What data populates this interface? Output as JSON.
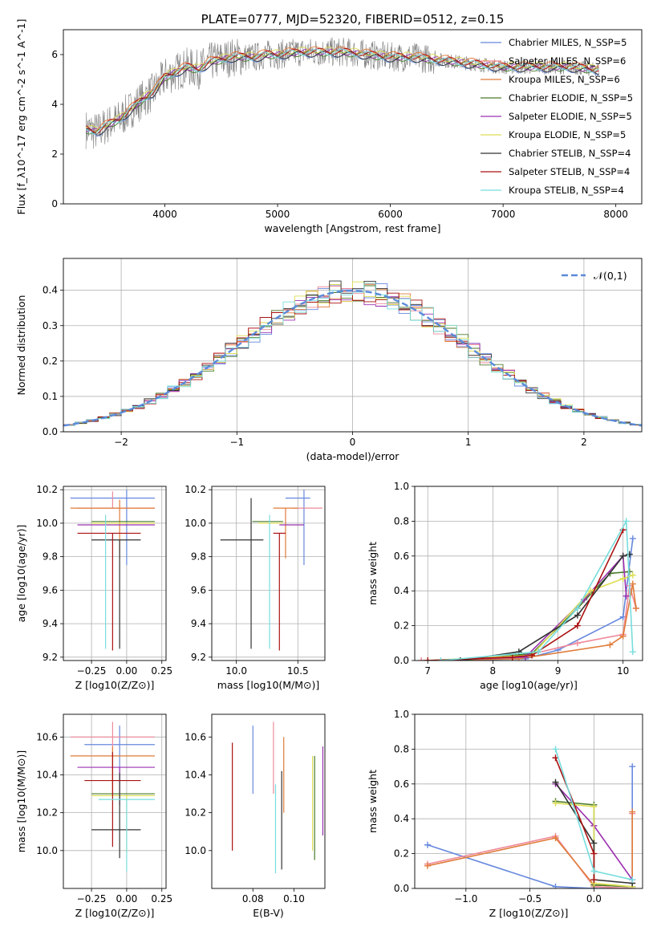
{
  "chart_data": [
    {
      "id": "spectrum",
      "type": "line",
      "title": "PLATE=0777, MJD=52320, FIBERID=0512, z=0.15",
      "xlabel": "wavelength [Angstrom, rest frame]",
      "ylabel": "Flux [f_λ10^-17 erg cm^-2 s^-1 A^-1]",
      "xlim": [
        3100,
        8230
      ],
      "ylim": [
        0,
        7.0
      ],
      "xticks": [
        4000,
        5000,
        6000,
        7000,
        8000
      ],
      "yticks": [
        0,
        2,
        4,
        6
      ],
      "grid": false,
      "legend_position": "top-right",
      "data_series": {
        "name": "",
        "color": "#808080",
        "x": [
          3300,
          3400,
          3500,
          3600,
          3700,
          3800,
          3900,
          4000,
          4100,
          4200,
          4300,
          4400,
          4500,
          4600,
          4700,
          4800,
          4900,
          5000,
          5200,
          5400,
          5600,
          5800,
          6000,
          6200,
          6400,
          6600,
          6800,
          7000,
          7200,
          7400,
          7600,
          7800
        ],
        "y": [
          3.0,
          2.9,
          3.2,
          3.4,
          3.8,
          4.2,
          4.5,
          5.1,
          5.3,
          5.5,
          5.4,
          5.7,
          5.8,
          5.9,
          5.9,
          5.9,
          6.0,
          6.0,
          6.1,
          6.1,
          6.1,
          6.0,
          5.9,
          5.9,
          5.8,
          5.7,
          5.6,
          5.5,
          5.5,
          5.5,
          5.5,
          5.4
        ]
      },
      "legend": [
        {
          "label": "Chabrier MILES, N_SSP=5",
          "color": "#6688dd"
        },
        {
          "label": "Salpeter MILES, N_SSP=6",
          "color": "#ee8899"
        },
        {
          "label": "Kroupa MILES, N_SSP=6",
          "color": "#e07b39"
        },
        {
          "label": "Chabrier ELODIE, N_SSP=5",
          "color": "#4a7a2a"
        },
        {
          "label": "Salpeter ELODIE, N_SSP=5",
          "color": "#9b30b0"
        },
        {
          "label": "Kroupa ELODIE, N_SSP=5",
          "color": "#dddd55"
        },
        {
          "label": "Chabrier STELIB, N_SSP=4",
          "color": "#333333"
        },
        {
          "label": "Salpeter STELIB, N_SSP=4",
          "color": "#aa1111"
        },
        {
          "label": "Kroupa STELIB, N_SSP=4",
          "color": "#77dddd"
        }
      ],
      "model_offsets": [
        -0.1,
        0.05,
        0.1,
        -0.05,
        0.0,
        0.08,
        -0.08,
        0.03,
        0.0
      ]
    },
    {
      "id": "residuals",
      "type": "line",
      "xlabel": "(data-model)/error",
      "ylabel": "Normed distribution",
      "xlim": [
        -2.5,
        2.5
      ],
      "ylim": [
        0,
        0.49
      ],
      "xticks": [
        -2,
        -1,
        0,
        1,
        2
      ],
      "yticks": [
        0.0,
        0.1,
        0.2,
        0.3,
        0.4
      ],
      "grid": true,
      "legend_position": "top-right",
      "legend_label": "𝒩(0,1)",
      "gaussian_color": "#5b8bd9"
    },
    {
      "id": "age-vs-Z",
      "type": "scatter",
      "xlabel": "Z [log10(Z/Z⊙)]",
      "ylabel": "age [log10(age/yr)]",
      "xlim": [
        -0.45,
        0.28
      ],
      "ylim": [
        9.18,
        10.22
      ],
      "xticks": [
        -0.25,
        0.0,
        0.25
      ],
      "yticks": [
        9.2,
        9.4,
        9.6,
        9.8,
        10.0,
        10.2
      ],
      "grid": true,
      "points": [
        {
          "x": 0.0,
          "y": 10.15,
          "xerr": [
            0.4,
            0.2
          ],
          "yerr": [
            0.4,
            0.05
          ],
          "color": "#6688dd"
        },
        {
          "x": -0.1,
          "y": 10.09,
          "xerr": [
            0.25,
            0.3
          ],
          "yerr": [
            0.0,
            0.1
          ],
          "color": "#ee8899"
        },
        {
          "x": -0.05,
          "y": 10.09,
          "xerr": [
            0.35,
            0.25
          ],
          "yerr": [
            0.3,
            0.05
          ],
          "color": "#e07b39"
        },
        {
          "x": 0.0,
          "y": 10.01,
          "xerr": [
            0.25,
            0.2
          ],
          "yerr": [
            0.0,
            0.0
          ],
          "color": "#4a7a2a"
        },
        {
          "x": -0.1,
          "y": 9.99,
          "xerr": [
            0.25,
            0.3
          ],
          "yerr": [
            0.0,
            0.0
          ],
          "color": "#9b30b0"
        },
        {
          "x": -0.05,
          "y": 10.0,
          "xerr": [
            0.2,
            0.25
          ],
          "yerr": [
            0.0,
            0.0
          ],
          "color": "#dddd55"
        },
        {
          "x": -0.05,
          "y": 9.9,
          "xerr": [
            0.2,
            0.15
          ],
          "yerr": [
            0.65,
            0.0
          ],
          "color": "#333333"
        },
        {
          "x": -0.1,
          "y": 9.94,
          "xerr": [
            0.25,
            0.2
          ],
          "yerr": [
            0.7,
            0.0
          ],
          "color": "#aa1111"
        },
        {
          "x": -0.15,
          "y": 10.0,
          "xerr": [
            0.0,
            0.0
          ],
          "yerr": [
            0.75,
            0.05
          ],
          "color": "#77dddd"
        }
      ]
    },
    {
      "id": "age-vs-mass",
      "type": "scatter",
      "xlabel": "mass [log10(M/M⊙)]",
      "ylabel": "",
      "xlim": [
        9.8,
        10.72
      ],
      "ylim": [
        9.18,
        10.22
      ],
      "xticks": [
        10.0,
        10.5
      ],
      "yticks": [
        9.2,
        9.4,
        9.6,
        9.8,
        10.0,
        10.2
      ],
      "grid": true,
      "points": [
        {
          "x": 10.55,
          "y": 10.15,
          "xerr": [
            0.15,
            0.05
          ],
          "yerr": [
            0.4,
            0.05
          ],
          "color": "#6688dd"
        },
        {
          "x": 10.55,
          "y": 10.09,
          "xerr": [
            0.1,
            0.15
          ],
          "yerr": [
            0.0,
            0.0
          ],
          "color": "#ee8899"
        },
        {
          "x": 10.4,
          "y": 10.09,
          "xerr": [
            0.1,
            0.1
          ],
          "yerr": [
            0.3,
            0.0
          ],
          "color": "#e07b39"
        },
        {
          "x": 10.28,
          "y": 10.01,
          "xerr": [
            0.15,
            0.1
          ],
          "yerr": [
            0.0,
            0.0
          ],
          "color": "#4a7a2a"
        },
        {
          "x": 10.45,
          "y": 9.99,
          "xerr": [
            0.1,
            0.1
          ],
          "yerr": [
            0.0,
            0.0
          ],
          "color": "#9b30b0"
        },
        {
          "x": 10.28,
          "y": 10.0,
          "xerr": [
            0.1,
            0.1
          ],
          "yerr": [
            0.0,
            0.0
          ],
          "color": "#dddd55"
        },
        {
          "x": 10.12,
          "y": 9.9,
          "xerr": [
            0.25,
            0.1
          ],
          "yerr": [
            0.65,
            0.25
          ],
          "color": "#333333"
        },
        {
          "x": 10.35,
          "y": 9.94,
          "xerr": [
            0.05,
            0.05
          ],
          "yerr": [
            0.7,
            0.0
          ],
          "color": "#aa1111"
        },
        {
          "x": 10.27,
          "y": 10.0,
          "xerr": [
            0.0,
            0.0
          ],
          "yerr": [
            0.75,
            0.05
          ],
          "color": "#77dddd"
        }
      ]
    },
    {
      "id": "massweight-vs-age",
      "type": "line",
      "xlabel": "age [log10(age/yr)]",
      "ylabel": "mass weight",
      "xlim": [
        6.8,
        10.3
      ],
      "ylim": [
        0.0,
        1.0
      ],
      "xticks": [
        7,
        8,
        9,
        10
      ],
      "yticks": [
        0.0,
        0.2,
        0.4,
        0.6,
        0.8,
        1.0
      ],
      "grid": true,
      "series": [
        {
          "color": "#6688dd",
          "x": [
            7.0,
            8.5,
            9.0,
            10.0,
            10.15
          ],
          "y": [
            0.0,
            0.01,
            0.06,
            0.25,
            0.7
          ]
        },
        {
          "color": "#ee8899",
          "x": [
            6.9,
            8.3,
            9.3,
            10.0,
            10.1,
            10.2
          ],
          "y": [
            0.0,
            0.01,
            0.1,
            0.15,
            0.43,
            0.3
          ]
        },
        {
          "color": "#e07b39",
          "x": [
            7.0,
            8.4,
            9.8,
            10.0,
            10.15,
            10.2
          ],
          "y": [
            0.0,
            0.01,
            0.09,
            0.14,
            0.44,
            0.3
          ]
        },
        {
          "color": "#4a7a2a",
          "x": [
            7.5,
            8.6,
            9.3,
            9.8,
            10.1
          ],
          "y": [
            0.0,
            0.04,
            0.3,
            0.5,
            0.51
          ]
        },
        {
          "color": "#9b30b0",
          "x": [
            7.0,
            8.5,
            9.4,
            10.0,
            10.05
          ],
          "y": [
            0.0,
            0.02,
            0.35,
            0.6,
            0.37
          ]
        },
        {
          "color": "#dddd55",
          "x": [
            7.0,
            8.6,
            9.5,
            10.0,
            10.15
          ],
          "y": [
            0.0,
            0.03,
            0.4,
            0.47,
            0.49
          ]
        },
        {
          "color": "#333333",
          "x": [
            7.5,
            8.4,
            9.3,
            10.0,
            10.1
          ],
          "y": [
            0.0,
            0.05,
            0.26,
            0.6,
            0.61
          ]
        },
        {
          "color": "#aa1111",
          "x": [
            7.0,
            8.3,
            8.6,
            9.3,
            10.0
          ],
          "y": [
            0.0,
            0.02,
            0.03,
            0.2,
            0.75
          ]
        },
        {
          "color": "#77dddd",
          "x": [
            7.2,
            8.7,
            9.3,
            10.05,
            10.15
          ],
          "y": [
            0.0,
            0.05,
            0.3,
            0.8,
            0.05
          ]
        }
      ]
    },
    {
      "id": "mass-vs-Z",
      "type": "scatter",
      "xlabel": "Z [log10(Z/Z⊙)]",
      "ylabel": "mass [log10(M/M⊙)]",
      "xlim": [
        -0.45,
        0.28
      ],
      "ylim": [
        9.8,
        10.72
      ],
      "xticks": [
        -0.25,
        0.0,
        0.25
      ],
      "yticks": [
        10.0,
        10.2,
        10.4,
        10.6
      ],
      "grid": true,
      "points": [
        {
          "x": -0.05,
          "y": 10.56,
          "xerr": [
            0.25,
            0.25
          ],
          "yerr": [
            0.2,
            0.1
          ],
          "color": "#6688dd"
        },
        {
          "x": -0.1,
          "y": 10.6,
          "xerr": [
            0.3,
            0.3
          ],
          "yerr": [
            0.25,
            0.08
          ],
          "color": "#ee8899"
        },
        {
          "x": -0.1,
          "y": 10.5,
          "xerr": [
            0.3,
            0.3
          ],
          "yerr": [
            0.2,
            0.05
          ],
          "color": "#e07b39"
        },
        {
          "x": -0.05,
          "y": 10.3,
          "xerr": [
            0.2,
            0.25
          ],
          "yerr": [
            0.0,
            0.0
          ],
          "color": "#4a7a2a"
        },
        {
          "x": -0.05,
          "y": 10.44,
          "xerr": [
            0.3,
            0.25
          ],
          "yerr": [
            0.2,
            0.0
          ],
          "color": "#9b30b0"
        },
        {
          "x": 0.0,
          "y": 10.29,
          "xerr": [
            0.25,
            0.2
          ],
          "yerr": [
            0.3,
            0.0
          ],
          "color": "#dddd55"
        },
        {
          "x": -0.05,
          "y": 10.11,
          "xerr": [
            0.2,
            0.15
          ],
          "yerr": [
            0.15,
            0.3
          ],
          "color": "#333333"
        },
        {
          "x": -0.1,
          "y": 10.37,
          "xerr": [
            0.2,
            0.2
          ],
          "yerr": [
            0.35,
            0.15
          ],
          "color": "#aa1111"
        },
        {
          "x": 0.0,
          "y": 10.27,
          "xerr": [
            0.2,
            0.2
          ],
          "yerr": [
            0.38,
            0.0
          ],
          "color": "#77dddd"
        }
      ]
    },
    {
      "id": "mass-vs-EBV",
      "type": "scatter",
      "xlabel": "E(B-V)",
      "ylabel": "",
      "xlim": [
        0.06,
        0.115
      ],
      "ylim": [
        9.8,
        10.72
      ],
      "xticks": [
        0.08,
        0.1
      ],
      "yticks": [
        10.0,
        10.2,
        10.4,
        10.6
      ],
      "grid": false,
      "points": [
        {
          "x": 0.08,
          "y": 10.5,
          "xerr": [
            0,
            0
          ],
          "yerr": [
            0.2,
            0.16
          ],
          "color": "#6688dd"
        },
        {
          "x": 0.09,
          "y": 10.5,
          "xerr": [
            0,
            0
          ],
          "yerr": [
            0.2,
            0.18
          ],
          "color": "#ee8899"
        },
        {
          "x": 0.095,
          "y": 10.3,
          "xerr": [
            0,
            0
          ],
          "yerr": [
            0.1,
            0.3
          ],
          "color": "#e07b39"
        },
        {
          "x": 0.11,
          "y": 10.2,
          "xerr": [
            0,
            0
          ],
          "yerr": [
            0.25,
            0.3
          ],
          "color": "#4a7a2a"
        },
        {
          "x": 0.114,
          "y": 10.3,
          "xerr": [
            0,
            0
          ],
          "yerr": [
            0.22,
            0.25
          ],
          "color": "#9b30b0"
        },
        {
          "x": 0.109,
          "y": 10.3,
          "xerr": [
            0,
            0
          ],
          "yerr": [
            0.3,
            0.2
          ],
          "color": "#dddd55"
        },
        {
          "x": 0.094,
          "y": 10.2,
          "xerr": [
            0,
            0
          ],
          "yerr": [
            0.3,
            0.22
          ],
          "color": "#333333"
        },
        {
          "x": 0.07,
          "y": 10.3,
          "xerr": [
            0,
            0
          ],
          "yerr": [
            0.3,
            0.27
          ],
          "color": "#aa1111"
        },
        {
          "x": 0.091,
          "y": 10.2,
          "xerr": [
            0,
            0
          ],
          "yerr": [
            0.32,
            0.15
          ],
          "color": "#77dddd"
        }
      ]
    },
    {
      "id": "massweight-vs-Z",
      "type": "line",
      "xlabel": "Z [log10(Z/Z⊙)]",
      "ylabel": "mass weight",
      "xlim": [
        -1.4,
        0.38
      ],
      "ylim": [
        0.0,
        1.0
      ],
      "xticks": [
        -1.0,
        -0.5,
        0.0
      ],
      "yticks": [
        0.0,
        0.2,
        0.4,
        0.6,
        0.8,
        1.0
      ],
      "grid": true,
      "series": [
        {
          "color": "#6688dd",
          "x": [
            -1.3,
            -0.3,
            0.0,
            0.3,
            0.3
          ],
          "y": [
            0.25,
            0.01,
            0.0,
            0.0,
            0.7
          ]
        },
        {
          "color": "#ee8899",
          "x": [
            -1.3,
            -0.3,
            0.0,
            0.3,
            0.3
          ],
          "y": [
            0.14,
            0.3,
            0.01,
            0.0,
            0.43
          ]
        },
        {
          "color": "#e07b39",
          "x": [
            -1.3,
            -0.3,
            0.0,
            0.3,
            0.3
          ],
          "y": [
            0.13,
            0.29,
            0.02,
            0.01,
            0.44
          ]
        },
        {
          "color": "#4a7a2a",
          "x": [
            -0.3,
            0.0,
            0.0,
            0.3
          ],
          "y": [
            0.5,
            0.48,
            0.02,
            0.01
          ]
        },
        {
          "color": "#9b30b0",
          "x": [
            -0.3,
            0.0,
            0.3
          ],
          "y": [
            0.6,
            0.36,
            0.05
          ]
        },
        {
          "color": "#dddd55",
          "x": [
            -0.3,
            0.0,
            0.0,
            0.3
          ],
          "y": [
            0.49,
            0.47,
            0.03,
            0.01
          ]
        },
        {
          "color": "#333333",
          "x": [
            -0.3,
            0.0,
            0.0,
            0.3
          ],
          "y": [
            0.61,
            0.26,
            0.05,
            0.03
          ]
        },
        {
          "color": "#aa1111",
          "x": [
            -0.3,
            0.0,
            0.0
          ],
          "y": [
            0.75,
            0.2,
            0.05
          ]
        },
        {
          "color": "#77dddd",
          "x": [
            -0.3,
            0.0,
            0.3
          ],
          "y": [
            0.8,
            0.1,
            0.05
          ]
        }
      ]
    }
  ]
}
